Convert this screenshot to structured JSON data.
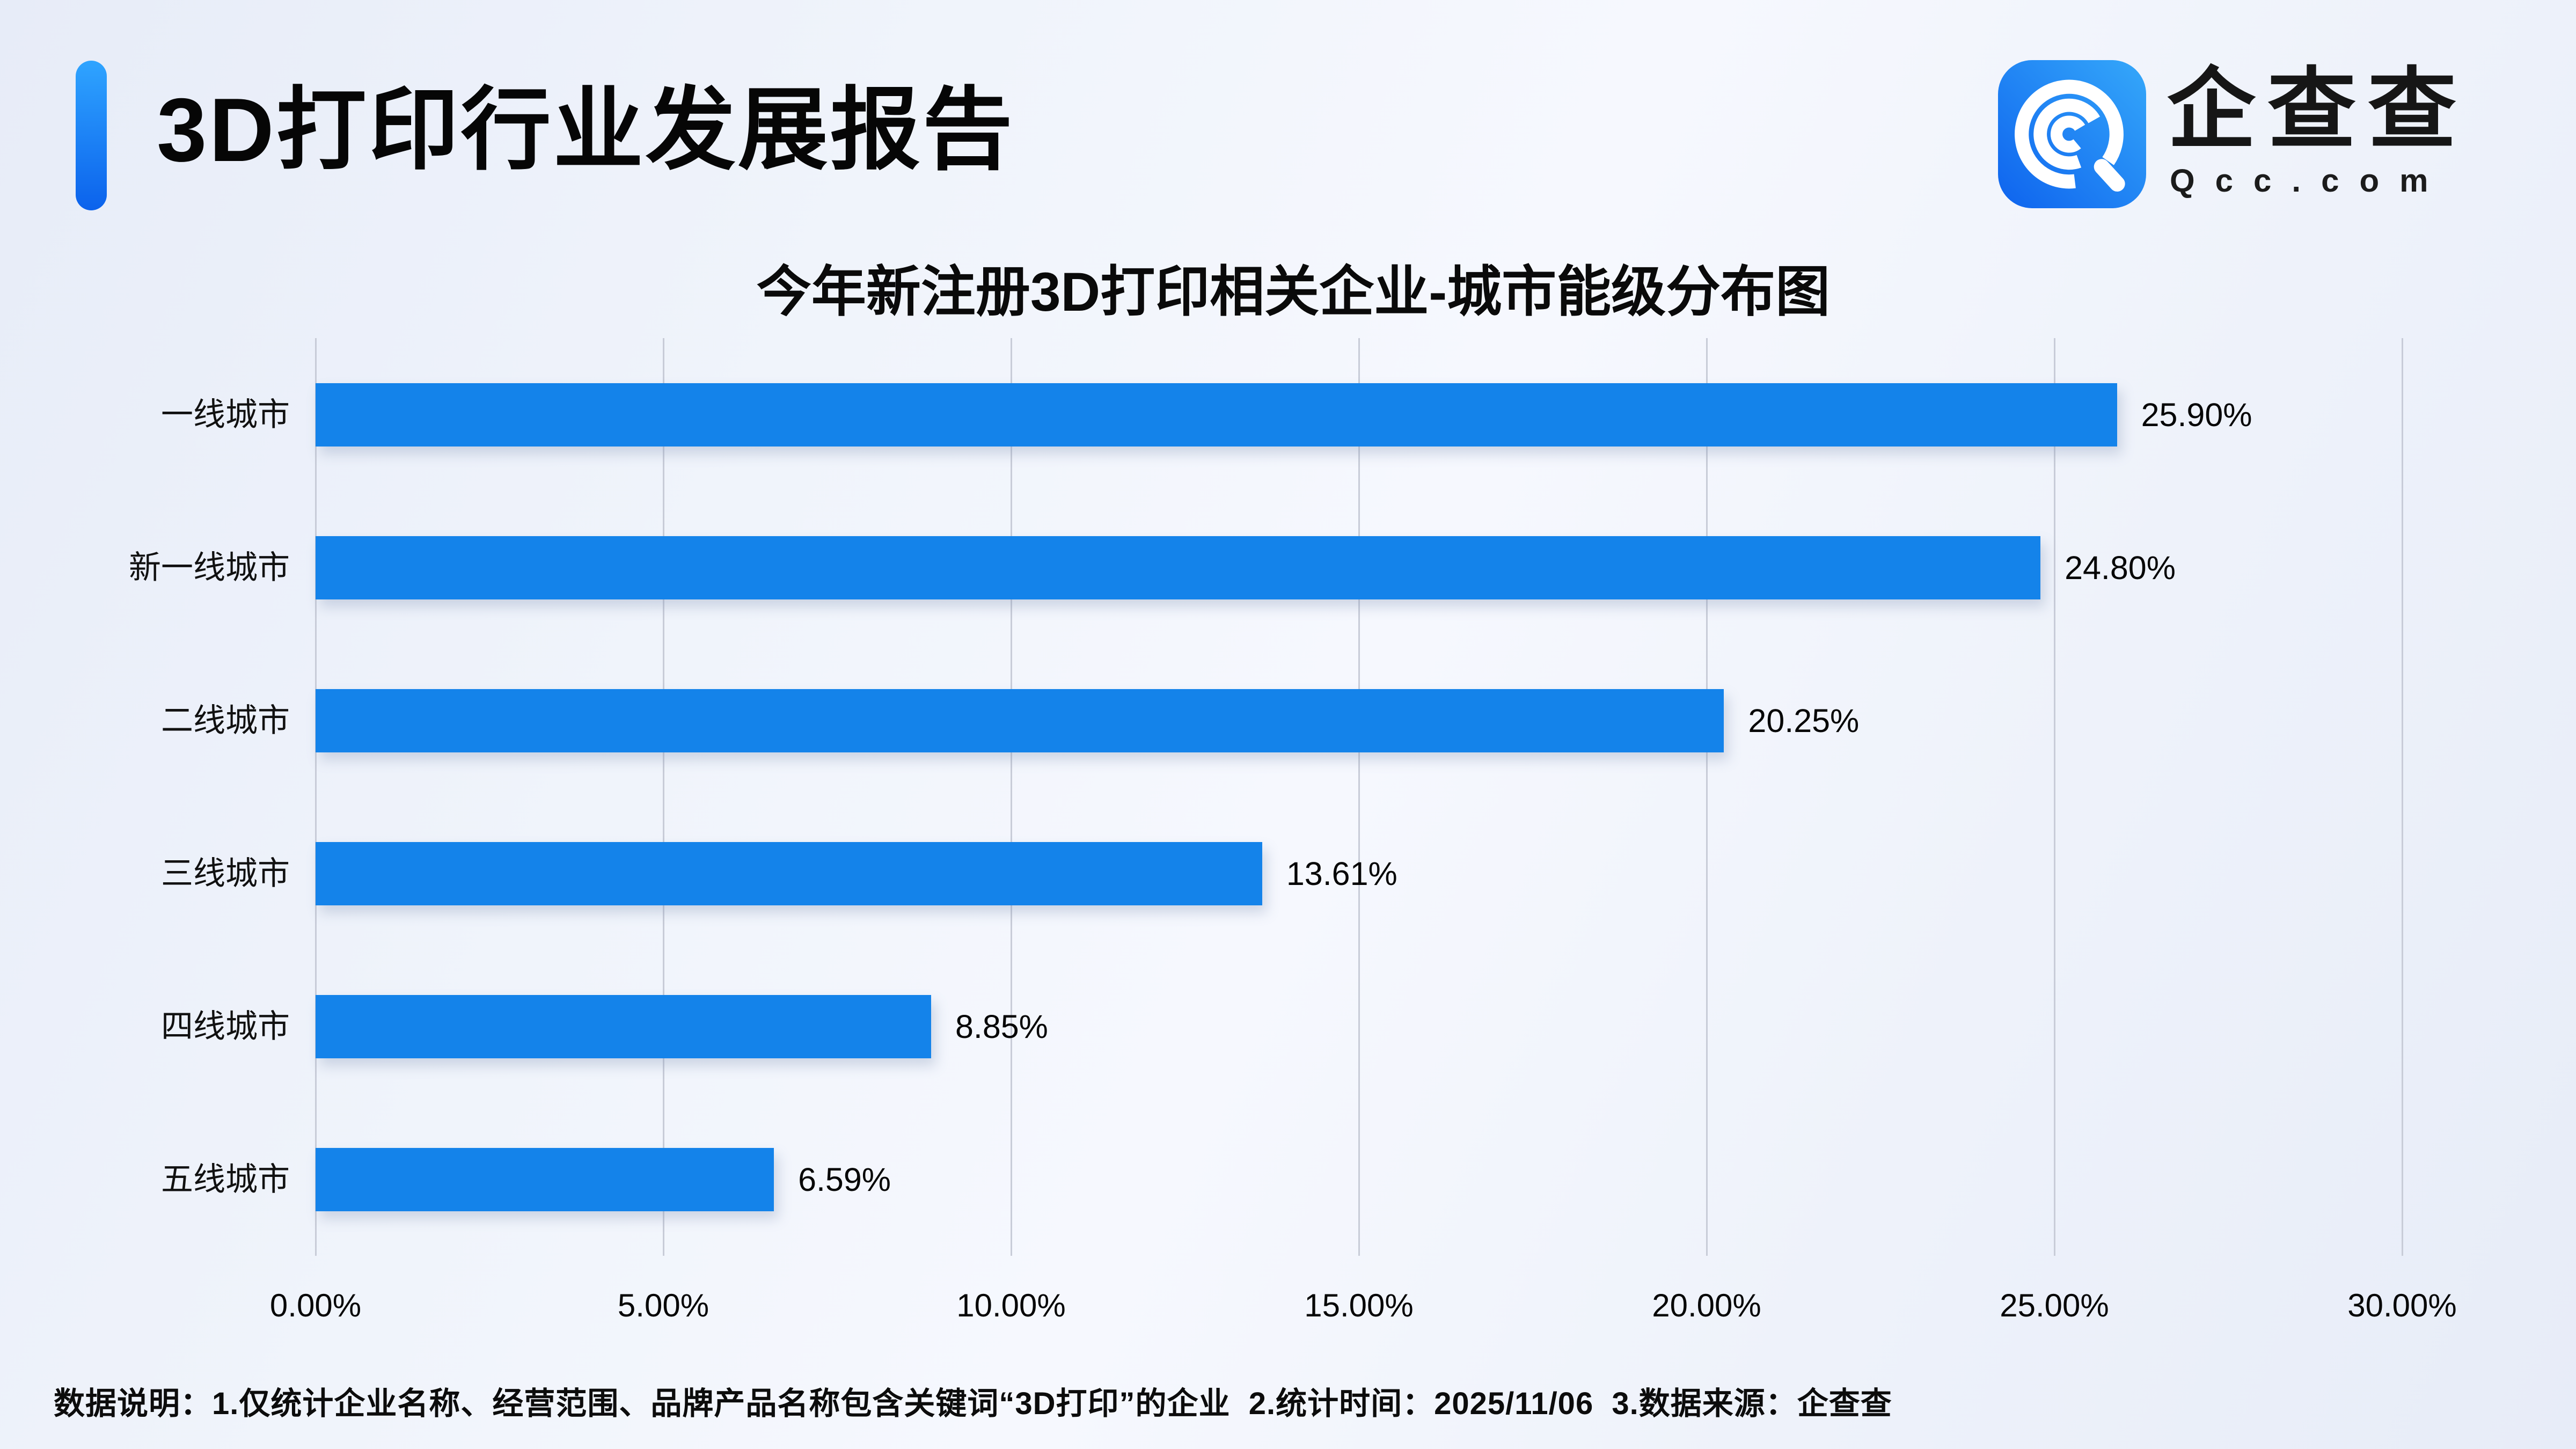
{
  "header": {
    "report_title": "3D打印行业发展报告",
    "accent_color": "#1180F4"
  },
  "logo": {
    "brand_name": "企查查",
    "brand_domain": "Qcc.com",
    "icon": "qcc-spiral-q-icon",
    "icon_gradient": [
      "#0E63EE",
      "#35A8FA"
    ]
  },
  "chart_data": {
    "type": "bar",
    "orientation": "horizontal",
    "title": "今年新注册3D打印相关企业-城市能级分布图",
    "categories": [
      "一线城市",
      "新一线城市",
      "二线城市",
      "三线城市",
      "四线城市",
      "五线城市"
    ],
    "values": [
      25.9,
      24.8,
      20.25,
      13.61,
      8.85,
      6.59
    ],
    "value_labels": [
      "25.90%",
      "24.80%",
      "20.25%",
      "13.61%",
      "8.85%",
      "6.59%"
    ],
    "x_ticks": [
      "0.00%",
      "5.00%",
      "10.00%",
      "15.00%",
      "20.00%",
      "25.00%",
      "30.00%"
    ],
    "xlim": [
      0,
      30
    ],
    "xlabel": "",
    "ylabel": "",
    "grid": true,
    "legend": "none",
    "bar_color": "#1483EA",
    "gridline_color": "#c8ccd8"
  },
  "footer": {
    "note": "数据说明：1.仅统计企业名称、经营范围、品牌产品名称包含关键词“3D打印”的企业  2.统计时间：2025/11/06  3.数据来源：企查查"
  }
}
